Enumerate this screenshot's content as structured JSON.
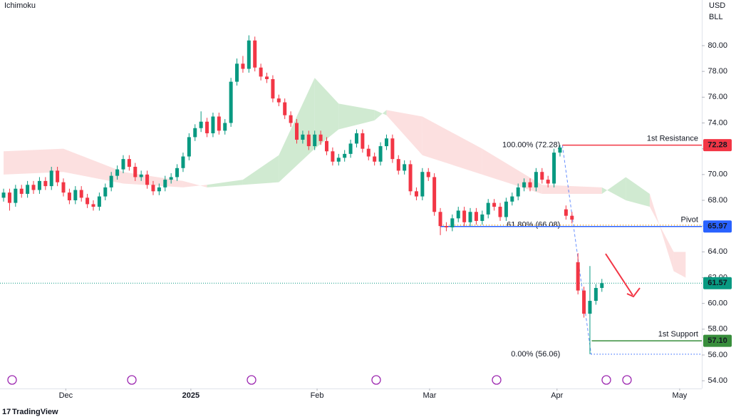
{
  "chart_data": {
    "type": "candlestick",
    "indicator": "Ichimoku",
    "currency": "USD",
    "unit": "BLL",
    "up_color": "#089981",
    "down_color": "#f23645",
    "xlim": [
      -0.6,
      116.7
    ],
    "ylim": [
      53.4,
      83.54
    ],
    "xticks": [
      {
        "value": 10.4,
        "label": "Dec"
      },
      {
        "value": 31.3,
        "label": "2025"
      },
      {
        "value": 52.4,
        "label": "Feb"
      },
      {
        "value": 71.2,
        "label": "Mar"
      },
      {
        "value": 92.5,
        "label": "Apr"
      },
      {
        "value": 113,
        "label": "May"
      }
    ],
    "yticks": [
      {
        "value": 54,
        "label": "54.00"
      },
      {
        "value": 56,
        "label": "56.00"
      },
      {
        "value": 58,
        "label": "58.00"
      },
      {
        "value": 60,
        "label": "60.00"
      },
      {
        "value": 62,
        "label": "62.00"
      },
      {
        "value": 64,
        "label": "64.00"
      },
      {
        "value": 66,
        "label": "66.00"
      },
      {
        "value": 68,
        "label": "68.00"
      },
      {
        "value": 70,
        "label": "70.00"
      },
      {
        "value": 72,
        "label": "72.00"
      },
      {
        "value": 74,
        "label": "74.00"
      },
      {
        "value": 76,
        "label": "76.00"
      },
      {
        "value": 78,
        "label": "78.00"
      },
      {
        "value": 80,
        "label": "80.00"
      }
    ],
    "open": [
      68.2,
      68.6,
      67.8,
      68.9,
      68.5,
      69.2,
      68.8,
      69.5,
      69.1,
      70.3,
      69.4,
      68.6,
      68.0,
      68.8,
      68.2,
      67.7,
      67.5,
      68.3,
      69.0,
      69.9,
      70.4,
      71.2,
      70.6,
      69.8,
      70.0,
      69.2,
      68.7,
      69.0,
      69.6,
      69.8,
      70.5,
      71.4,
      72.9,
      73.6,
      74.1,
      73.2,
      74.5,
      73.4,
      74.0,
      77.2,
      78.6,
      78.2,
      80.4,
      78.3,
      77.6,
      77.4,
      75.9,
      75.6,
      74.6,
      74.0,
      72.7,
      73.1,
      72.2,
      73.1,
      72.6,
      71.8,
      71.0,
      71.3,
      71.6,
      72.4,
      73.2,
      72.0,
      71.4,
      71.0,
      72.2,
      72.8,
      71.2,
      70.3,
      70.8,
      68.7,
      68.3,
      70.2,
      69.8,
      67.1,
      66.0,
      65.9,
      66.6,
      67.2,
      66.3,
      67.1,
      66.4,
      66.9,
      67.8,
      67.5,
      66.7,
      67.9,
      68.3,
      69.0,
      69.4,
      69.0,
      70.2,
      69.6,
      69.3,
      71.7,
      67.3,
      66.8,
      63.2,
      61.0,
      59.2,
      60.2,
      61.2
    ],
    "high": [
      68.9,
      68.9,
      69.2,
      69.2,
      69.5,
      69.5,
      69.8,
      69.8,
      70.6,
      70.6,
      69.7,
      68.9,
      69.1,
      69.1,
      68.5,
      68.0,
      68.6,
      69.3,
      70.2,
      70.7,
      71.5,
      71.5,
      70.9,
      70.3,
      70.3,
      69.5,
      69.3,
      69.9,
      70.1,
      70.8,
      71.7,
      73.2,
      73.9,
      74.9,
      74.4,
      74.8,
      74.8,
      74.3,
      77.5,
      79.0,
      79.2,
      80.8,
      80.7,
      78.6,
      77.9,
      77.7,
      76.2,
      75.9,
      74.9,
      74.3,
      73.4,
      73.4,
      73.4,
      73.4,
      72.9,
      72.1,
      71.6,
      71.9,
      72.7,
      73.5,
      73.5,
      72.3,
      71.7,
      72.5,
      73.1,
      73.1,
      71.5,
      71.1,
      71.1,
      69.0,
      70.5,
      70.5,
      70.1,
      67.4,
      66.3,
      66.9,
      67.5,
      67.5,
      67.4,
      67.4,
      67.2,
      68.1,
      68.1,
      67.8,
      68.2,
      68.6,
      69.3,
      69.7,
      69.7,
      70.5,
      70.5,
      69.9,
      72.0,
      72.28,
      67.6,
      67.1,
      63.9,
      61.3,
      62.9,
      61.5,
      61.9
    ],
    "low": [
      67.9,
      67.2,
      67.5,
      68.2,
      68.2,
      68.5,
      68.5,
      68.8,
      68.8,
      69.1,
      68.3,
      67.7,
      67.7,
      67.9,
      67.4,
      67.2,
      67.2,
      68.0,
      68.7,
      69.6,
      70.1,
      70.3,
      69.5,
      69.5,
      68.9,
      68.4,
      68.4,
      68.7,
      69.3,
      69.5,
      70.2,
      71.1,
      72.6,
      73.3,
      72.9,
      72.9,
      73.1,
      73.1,
      73.7,
      76.9,
      77.9,
      77.9,
      78.0,
      77.3,
      77.1,
      75.6,
      75.3,
      74.3,
      73.7,
      72.4,
      72.4,
      71.9,
      71.9,
      72.3,
      71.5,
      70.7,
      70.7,
      71.0,
      71.3,
      72.1,
      71.7,
      71.1,
      70.7,
      70.7,
      71.9,
      70.9,
      70.0,
      70.0,
      68.4,
      68.0,
      68.0,
      69.5,
      66.8,
      65.3,
      65.6,
      65.6,
      66.3,
      66.0,
      66.0,
      66.1,
      66.1,
      66.6,
      67.2,
      66.4,
      66.4,
      67.6,
      68.0,
      68.7,
      68.7,
      68.7,
      69.3,
      69.0,
      69.0,
      71.4,
      66.5,
      66.2,
      60.7,
      58.9,
      56.06,
      59.9,
      60.9
    ],
    "close": [
      68.6,
      67.8,
      68.9,
      68.5,
      69.2,
      68.8,
      69.5,
      69.1,
      70.3,
      69.4,
      68.6,
      68.0,
      68.8,
      68.2,
      67.7,
      67.5,
      68.3,
      69.0,
      69.9,
      70.4,
      71.2,
      70.6,
      69.8,
      70.0,
      69.2,
      68.7,
      69.0,
      69.6,
      69.8,
      70.5,
      71.4,
      72.9,
      73.6,
      74.1,
      73.2,
      74.5,
      73.4,
      74.0,
      77.2,
      78.6,
      78.2,
      80.4,
      78.3,
      77.6,
      77.4,
      75.9,
      75.6,
      74.6,
      74.0,
      72.7,
      73.1,
      72.2,
      73.1,
      72.6,
      71.8,
      71.0,
      71.3,
      71.6,
      72.4,
      73.2,
      72.0,
      71.4,
      71.0,
      72.2,
      72.8,
      71.2,
      70.3,
      70.8,
      68.7,
      68.3,
      70.2,
      69.8,
      67.1,
      66.0,
      65.9,
      66.6,
      67.2,
      66.3,
      67.1,
      66.4,
      66.9,
      67.8,
      67.5,
      66.7,
      67.9,
      68.3,
      69.0,
      69.4,
      69.0,
      70.2,
      69.6,
      69.3,
      71.7,
      72.1,
      66.8,
      66.5,
      61.0,
      59.2,
      60.2,
      61.2,
      61.57
    ],
    "cloud": {
      "x": [
        0,
        10,
        20,
        30,
        34,
        40,
        46,
        52,
        56,
        62,
        64,
        70,
        80,
        90,
        100,
        104,
        108,
        112,
        114
      ],
      "span_a": [
        70.0,
        70.2,
        69.3,
        69.0,
        69.2,
        69.6,
        71.5,
        77.5,
        75.5,
        75.0,
        74.6,
        71.5,
        70.0,
        68.5,
        68.5,
        69.8,
        68.5,
        62.5,
        62.0
      ],
      "span_b": [
        71.8,
        72.0,
        70.2,
        69.5,
        69.0,
        69.2,
        69.4,
        72.0,
        73.5,
        74.2,
        75.0,
        74.5,
        72.0,
        69.2,
        69.0,
        68.0,
        67.5,
        64.0,
        64.0
      ],
      "up_color": "#c8e6c9",
      "down_color": "#fcdada"
    },
    "current_price": {
      "value": 61.57,
      "label": "61.57",
      "color": "#089981"
    },
    "levels": [
      {
        "name": "1st Resistance",
        "value": 72.28,
        "label": "72.28",
        "color": "#f23645",
        "from_x": 93.4
      },
      {
        "name": "Pivot",
        "value": 65.97,
        "label": "65.97",
        "color": "#2962ff",
        "from_x": 73
      },
      {
        "name": "1st Support",
        "value": 57.1,
        "label": "57.10",
        "color": "#388e3c",
        "from_x": 98.3
      }
    ],
    "fibonacci": {
      "from_x": 93.4,
      "to_x": 98.2,
      "levels": [
        {
          "label": "100.00% (72.28)",
          "value": 72.28,
          "color": "#2962ff"
        },
        {
          "label": "61.80% (66.08)",
          "value": 66.08,
          "color": "#f5a623"
        },
        {
          "label": "0.00% (56.06)",
          "value": 56.06,
          "color": "#2962ff"
        }
      ]
    }
  },
  "brand": "TradingView"
}
